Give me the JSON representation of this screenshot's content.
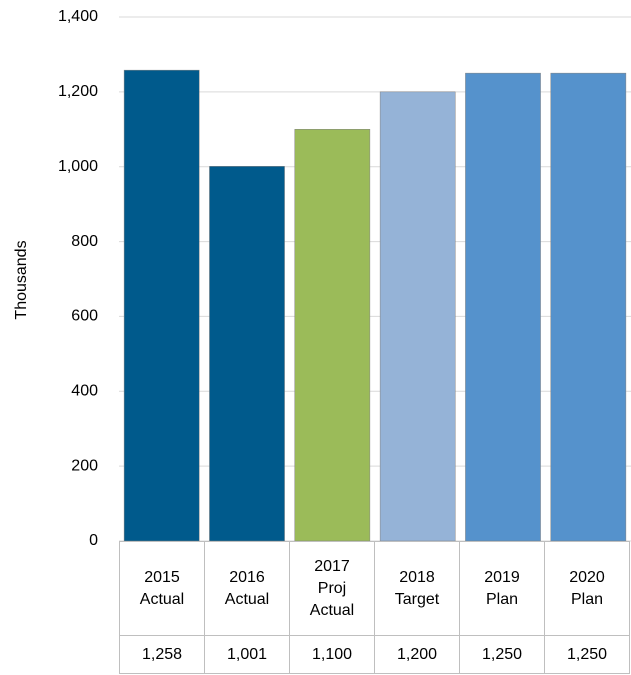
{
  "chart_data": {
    "type": "bar",
    "y_label": "Thousands",
    "categories": [
      "2015 Actual",
      "2016 Actual",
      "2017 Proj Actual",
      "2018 Target",
      "2019 Plan",
      "2020 Plan"
    ],
    "values": [
      1258,
      1001,
      1100,
      1200,
      1250,
      1250
    ],
    "value_labels": [
      "1,258",
      "1,001",
      "1,100",
      "1,200",
      "1,250",
      "1,250"
    ],
    "colors": [
      "#005a8c",
      "#005a8c",
      "#9bbb59",
      "#95b3d7",
      "#5592cc",
      "#5592cc"
    ],
    "ylim": [
      0,
      1400
    ],
    "yticks": [
      0,
      200,
      400,
      600,
      800,
      {
        "value": 1000,
        "label": "1,000"
      },
      {
        "value": 1200,
        "label": "1,200"
      },
      {
        "value": 1400,
        "label": "1,400"
      }
    ],
    "grid": true
  }
}
